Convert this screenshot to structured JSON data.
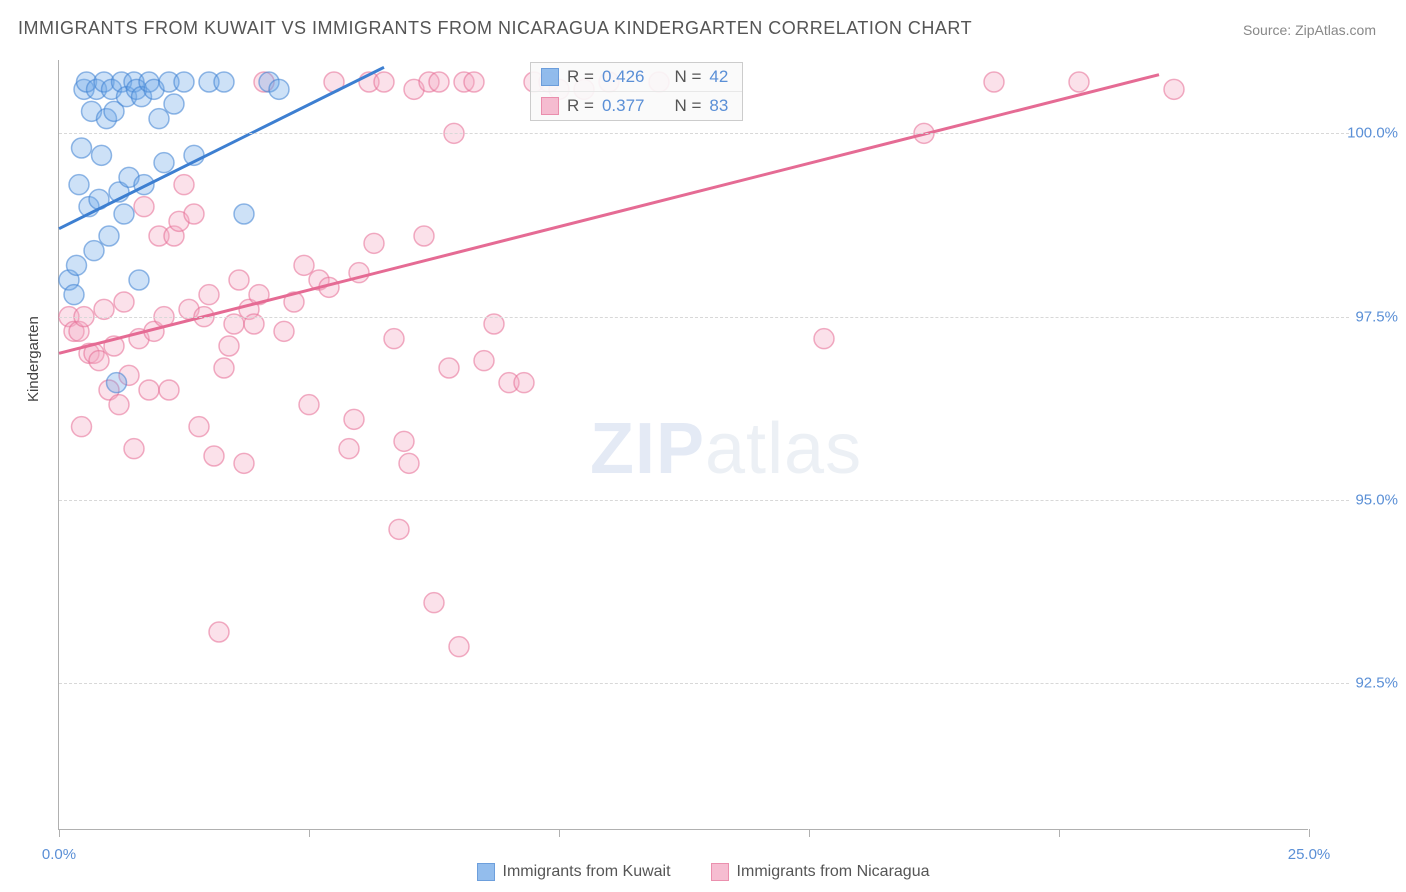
{
  "title": "IMMIGRANTS FROM KUWAIT VS IMMIGRANTS FROM NICARAGUA KINDERGARTEN CORRELATION CHART",
  "source": "Source: ZipAtlas.com",
  "y_axis_label": "Kindergarten",
  "watermark_bold": "ZIP",
  "watermark_light": "atlas",
  "chart": {
    "type": "scatter",
    "xlim": [
      0,
      25
    ],
    "ylim": [
      90.5,
      101
    ],
    "x_ticks": [
      0,
      5,
      10,
      15,
      20,
      25
    ],
    "x_tick_labels": {
      "0": "0.0%",
      "25": "25.0%"
    },
    "y_grid": [
      92.5,
      95.0,
      97.5,
      100.0
    ],
    "y_tick_labels": {
      "92.5": "92.5%",
      "95.0": "95.0%",
      "97.5": "97.5%",
      "100.0": "100.0%"
    },
    "background_color": "#ffffff",
    "grid_color": "#d8d8d8",
    "marker_radius": 10,
    "marker_opacity": 0.35,
    "series": [
      {
        "name": "Immigrants from Kuwait",
        "fill": "#6fa8e8",
        "stroke": "#3d7fd1",
        "R": "0.426",
        "N": "42",
        "trend_line": {
          "x1": 0.0,
          "y1": 98.7,
          "x2": 6.5,
          "y2": 100.9
        },
        "points": [
          [
            0.2,
            98.0
          ],
          [
            0.3,
            97.8
          ],
          [
            0.35,
            98.2
          ],
          [
            0.4,
            99.3
          ],
          [
            0.45,
            99.8
          ],
          [
            0.5,
            100.6
          ],
          [
            0.55,
            100.7
          ],
          [
            0.6,
            99.0
          ],
          [
            0.65,
            100.3
          ],
          [
            0.7,
            98.4
          ],
          [
            0.75,
            100.6
          ],
          [
            0.8,
            99.1
          ],
          [
            0.85,
            99.7
          ],
          [
            0.9,
            100.7
          ],
          [
            0.95,
            100.2
          ],
          [
            1.0,
            98.6
          ],
          [
            1.05,
            100.6
          ],
          [
            1.1,
            100.3
          ],
          [
            1.15,
            96.6
          ],
          [
            1.2,
            99.2
          ],
          [
            1.25,
            100.7
          ],
          [
            1.3,
            98.9
          ],
          [
            1.35,
            100.5
          ],
          [
            1.4,
            99.4
          ],
          [
            1.5,
            100.7
          ],
          [
            1.55,
            100.6
          ],
          [
            1.6,
            98.0
          ],
          [
            1.65,
            100.5
          ],
          [
            1.7,
            99.3
          ],
          [
            1.8,
            100.7
          ],
          [
            1.9,
            100.6
          ],
          [
            2.0,
            100.2
          ],
          [
            2.1,
            99.6
          ],
          [
            2.2,
            100.7
          ],
          [
            2.3,
            100.4
          ],
          [
            2.5,
            100.7
          ],
          [
            2.7,
            99.7
          ],
          [
            3.0,
            100.7
          ],
          [
            3.3,
            100.7
          ],
          [
            3.7,
            98.9
          ],
          [
            4.2,
            100.7
          ],
          [
            4.4,
            100.6
          ]
        ]
      },
      {
        "name": "Immigrants from Nicaragua",
        "fill": "#f4a8c2",
        "stroke": "#e56b94",
        "R": "0.377",
        "N": "83",
        "trend_line": {
          "x1": 0.0,
          "y1": 97.0,
          "x2": 22.0,
          "y2": 100.8
        },
        "points": [
          [
            0.2,
            97.5
          ],
          [
            0.3,
            97.3
          ],
          [
            0.4,
            97.3
          ],
          [
            0.45,
            96.0
          ],
          [
            0.5,
            97.5
          ],
          [
            0.6,
            97.0
          ],
          [
            0.7,
            97.0
          ],
          [
            0.8,
            96.9
          ],
          [
            0.9,
            97.6
          ],
          [
            1.0,
            96.5
          ],
          [
            1.1,
            97.1
          ],
          [
            1.2,
            96.3
          ],
          [
            1.3,
            97.7
          ],
          [
            1.4,
            96.7
          ],
          [
            1.5,
            95.7
          ],
          [
            1.6,
            97.2
          ],
          [
            1.7,
            99.0
          ],
          [
            1.8,
            96.5
          ],
          [
            1.9,
            97.3
          ],
          [
            2.0,
            98.6
          ],
          [
            2.1,
            97.5
          ],
          [
            2.2,
            96.5
          ],
          [
            2.3,
            98.6
          ],
          [
            2.4,
            98.8
          ],
          [
            2.5,
            99.3
          ],
          [
            2.6,
            97.6
          ],
          [
            2.7,
            98.9
          ],
          [
            2.8,
            96.0
          ],
          [
            2.9,
            97.5
          ],
          [
            3.0,
            97.8
          ],
          [
            3.1,
            95.6
          ],
          [
            3.2,
            93.2
          ],
          [
            3.3,
            96.8
          ],
          [
            3.4,
            97.1
          ],
          [
            3.5,
            97.4
          ],
          [
            3.6,
            98.0
          ],
          [
            3.7,
            95.5
          ],
          [
            3.8,
            97.6
          ],
          [
            3.9,
            97.4
          ],
          [
            4.0,
            97.8
          ],
          [
            4.1,
            100.7
          ],
          [
            4.5,
            97.3
          ],
          [
            4.7,
            97.7
          ],
          [
            4.9,
            98.2
          ],
          [
            5.0,
            96.3
          ],
          [
            5.2,
            98.0
          ],
          [
            5.4,
            97.9
          ],
          [
            5.5,
            100.7
          ],
          [
            5.8,
            95.7
          ],
          [
            5.9,
            96.1
          ],
          [
            6.0,
            98.1
          ],
          [
            6.2,
            100.7
          ],
          [
            6.3,
            98.5
          ],
          [
            6.5,
            100.7
          ],
          [
            6.7,
            97.2
          ],
          [
            6.8,
            94.6
          ],
          [
            6.9,
            95.8
          ],
          [
            7.0,
            95.5
          ],
          [
            7.1,
            100.6
          ],
          [
            7.3,
            98.6
          ],
          [
            7.4,
            100.7
          ],
          [
            7.5,
            93.6
          ],
          [
            7.6,
            100.7
          ],
          [
            7.8,
            96.8
          ],
          [
            7.9,
            100.0
          ],
          [
            8.0,
            93.0
          ],
          [
            8.1,
            100.7
          ],
          [
            8.3,
            100.7
          ],
          [
            8.5,
            96.9
          ],
          [
            8.7,
            97.4
          ],
          [
            9.0,
            96.6
          ],
          [
            9.3,
            96.6
          ],
          [
            9.5,
            100.7
          ],
          [
            9.8,
            100.7
          ],
          [
            10.0,
            100.6
          ],
          [
            10.5,
            100.6
          ],
          [
            11.0,
            100.7
          ],
          [
            12.0,
            100.7
          ],
          [
            15.3,
            97.2
          ],
          [
            17.3,
            100.0
          ],
          [
            18.7,
            100.7
          ],
          [
            20.4,
            100.7
          ],
          [
            22.3,
            100.6
          ]
        ]
      }
    ]
  },
  "stats_labels": {
    "R": "R =",
    "N": "N ="
  },
  "bottom_legend": [
    {
      "label": "Immigrants from Kuwait",
      "fill": "#6fa8e8",
      "stroke": "#3d7fd1"
    },
    {
      "label": "Immigrants from Nicaragua",
      "fill": "#f4a8c2",
      "stroke": "#e56b94"
    }
  ]
}
